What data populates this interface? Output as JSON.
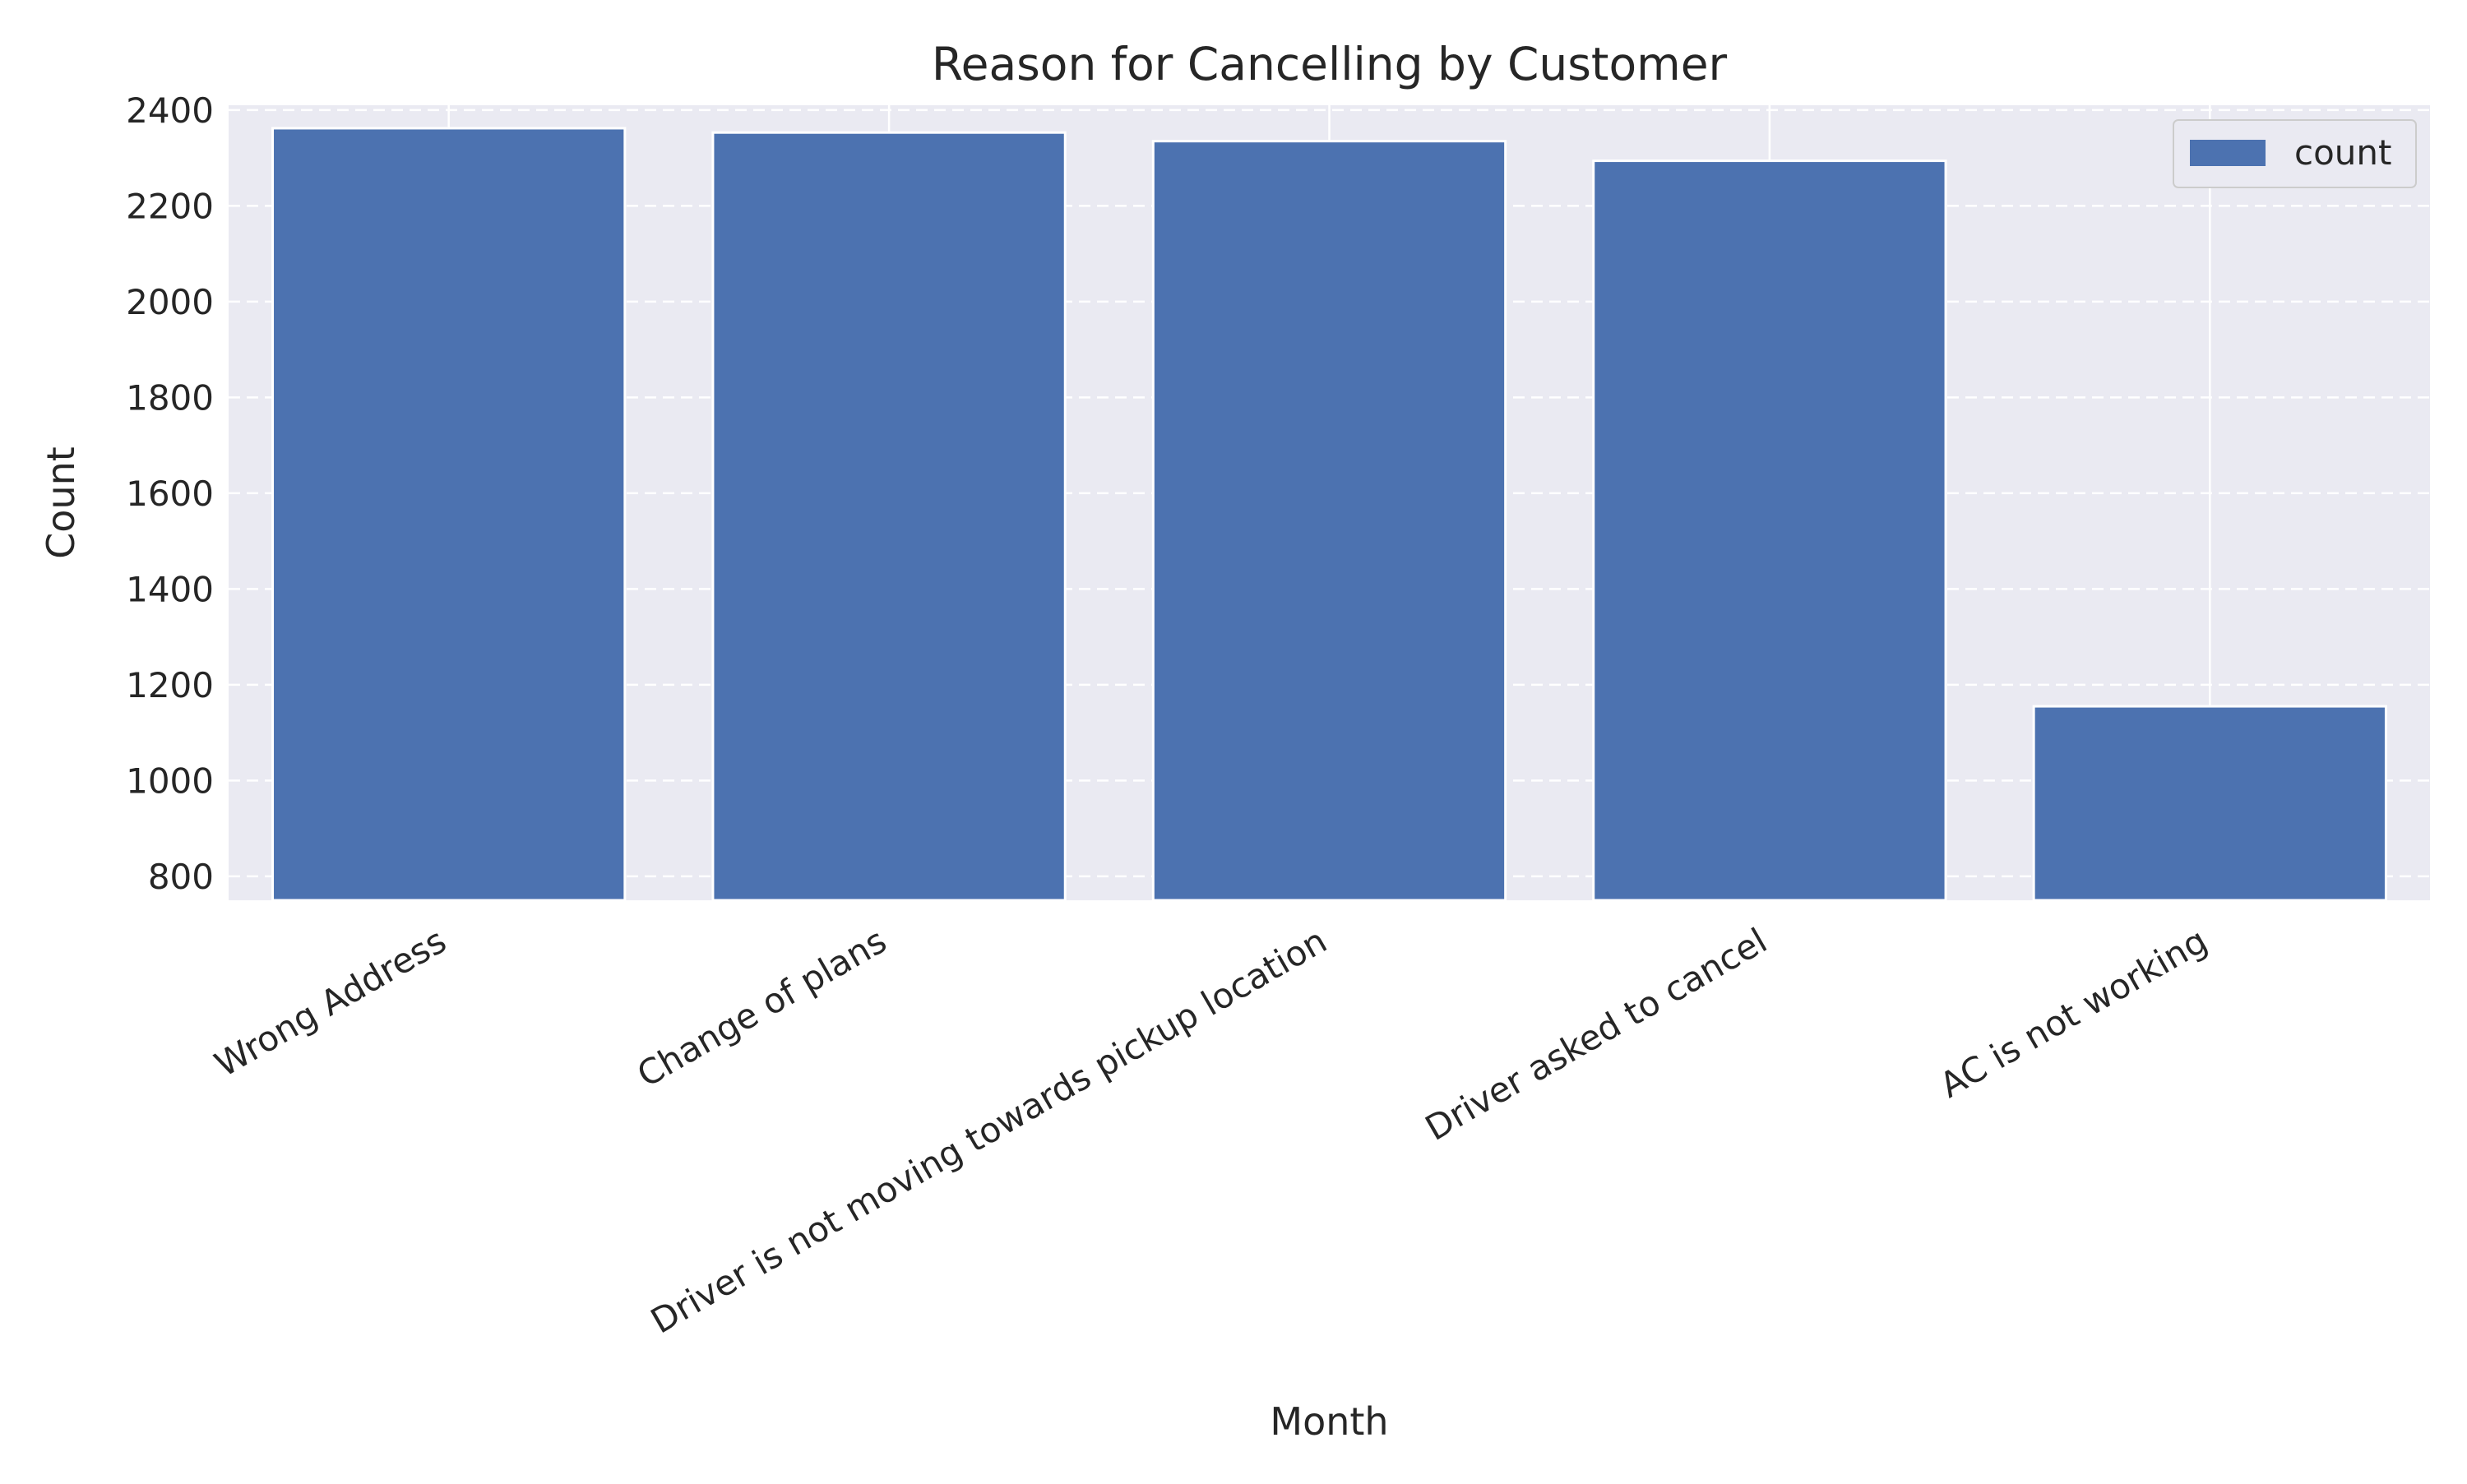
{
  "chart_data": {
    "type": "bar",
    "title": "Reason for Cancelling by Customer",
    "xlabel": "Month",
    "ylabel": "Count",
    "categories": [
      "Wrong Address",
      "Change of plans",
      "Driver is not moving towards pickup location",
      "Driver asked to cancel",
      "AC is not working"
    ],
    "series": [
      {
        "name": "count",
        "values": [
          2362,
          2353,
          2335,
          2294,
          1155
        ],
        "color": "#4c72b0"
      }
    ],
    "ylim": [
      750,
      2410
    ],
    "yticks": [
      800,
      1000,
      1200,
      1400,
      1600,
      1800,
      2000,
      2200,
      2400
    ],
    "grid": true,
    "legend_position": "top-right",
    "background_color": "#eaeaf2",
    "grid_color": "#ffffff"
  }
}
